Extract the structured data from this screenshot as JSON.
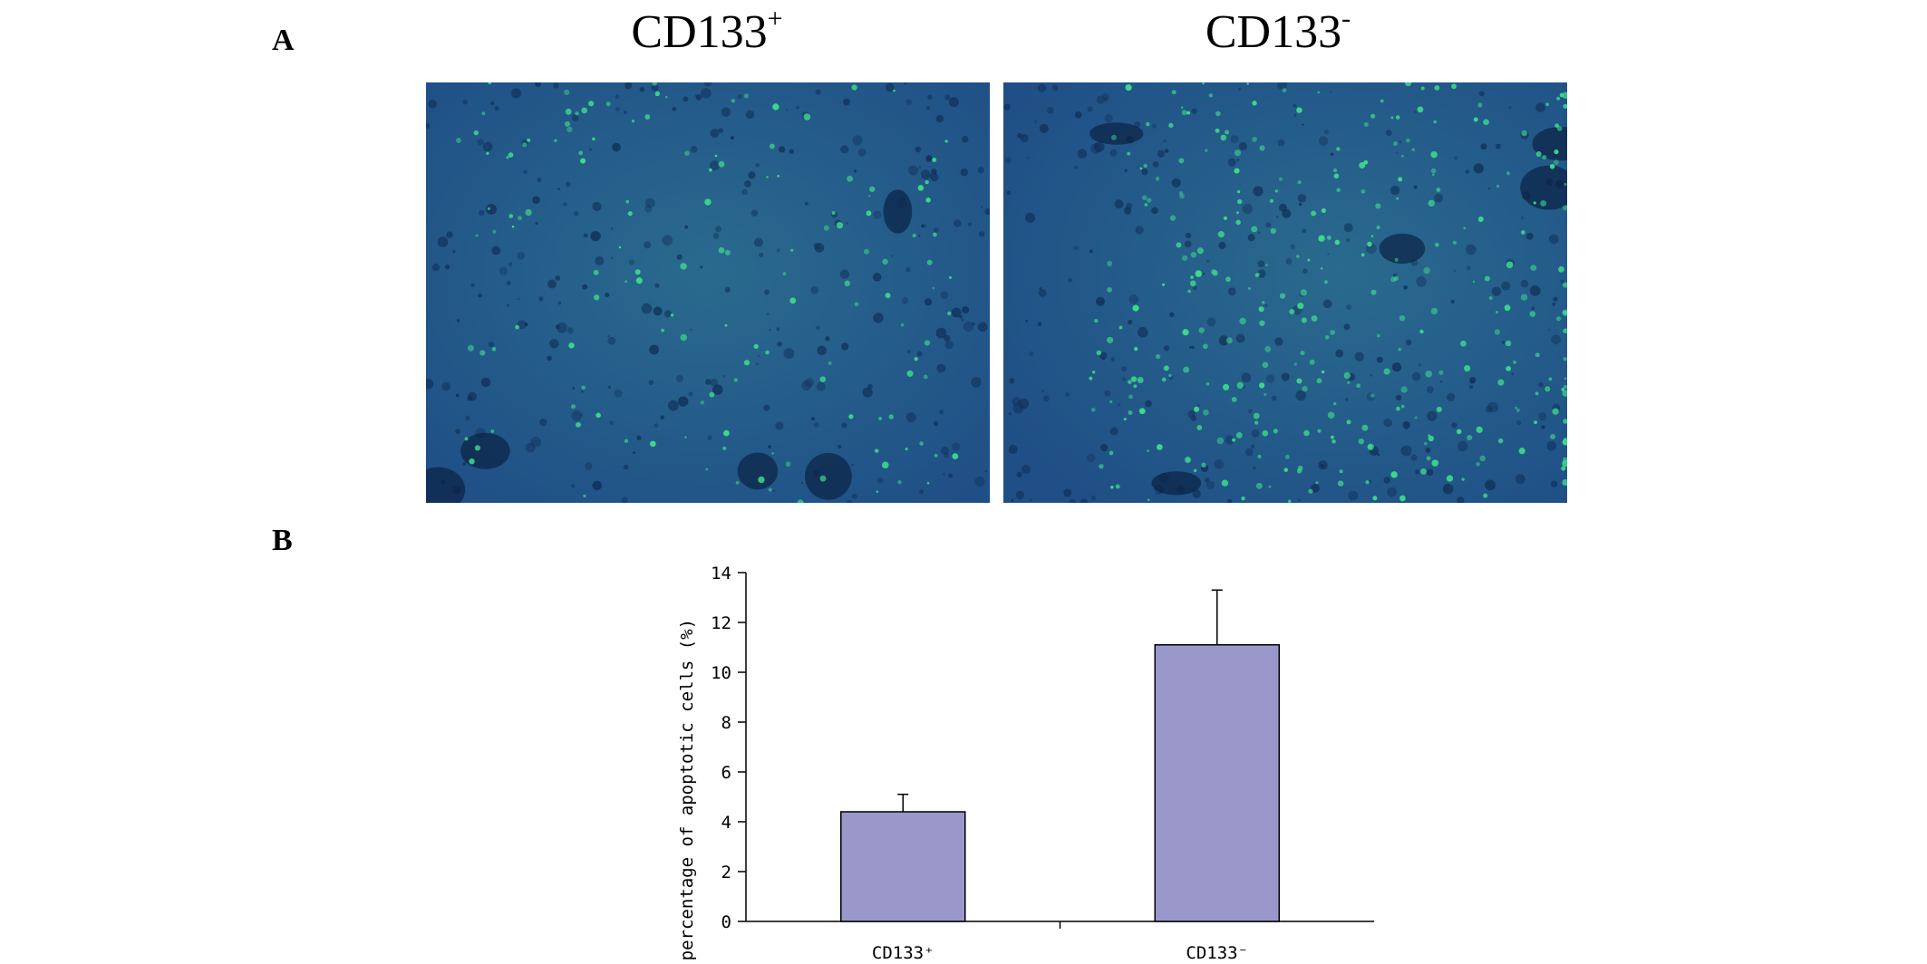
{
  "figure": {
    "panel_a_letter": "A",
    "panel_b_letter": "B",
    "images": [
      {
        "title_main": "CD133",
        "title_sup": "+"
      },
      {
        "title_main": "CD133",
        "title_sup": "-"
      }
    ]
  },
  "colors": {
    "bar_fill": "#9a98cb",
    "image_base": "#1f4f86",
    "fluorescence": "#3fe08a"
  },
  "chart_data": {
    "type": "bar",
    "categories": [
      "CD133⁺",
      "CD133⁻"
    ],
    "values": [
      4.4,
      11.1
    ],
    "errors": [
      0.7,
      2.2
    ],
    "title": "",
    "xlabel": "",
    "ylabel": "The percentage of apoptotic cells (%)",
    "ylim": [
      0,
      14
    ],
    "yticks": [
      0,
      2,
      4,
      6,
      8,
      10,
      12,
      14
    ],
    "grid": false,
    "legend": "none"
  }
}
